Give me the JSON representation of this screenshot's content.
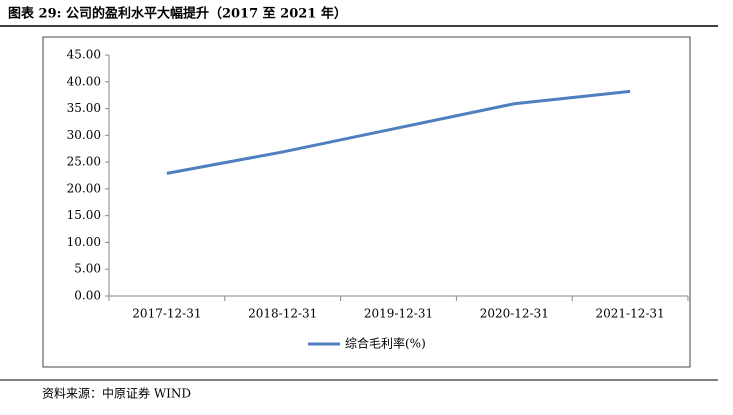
{
  "chart_data": {
    "type": "line",
    "title": "图表 29: 公司的盈利水平大幅提升（2017 至 2021 年）",
    "source": "资料来源：中原证券 WIND",
    "categories": [
      "2017-12-31",
      "2018-12-31",
      "2019-12-31",
      "2020-12-31",
      "2021-12-31"
    ],
    "series": [
      {
        "name": "综合毛利率(%)",
        "color": "#4f7fbf",
        "values": [
          22.9,
          26.9,
          31.4,
          35.9,
          38.2
        ]
      }
    ],
    "ylim": [
      0,
      45
    ],
    "yticks": [
      {
        "value": 0,
        "label": "0.00"
      },
      {
        "value": 5,
        "label": "5.00"
      },
      {
        "value": 10,
        "label": "10.00"
      },
      {
        "value": 15,
        "label": "15.00"
      },
      {
        "value": 20,
        "label": "20.00"
      },
      {
        "value": 25,
        "label": "25.00"
      },
      {
        "value": 30,
        "label": "30.00"
      },
      {
        "value": 35,
        "label": "35.00"
      },
      {
        "value": 40,
        "label": "40.00"
      },
      {
        "value": 45,
        "label": "45.00"
      }
    ],
    "legend": "bottom"
  }
}
